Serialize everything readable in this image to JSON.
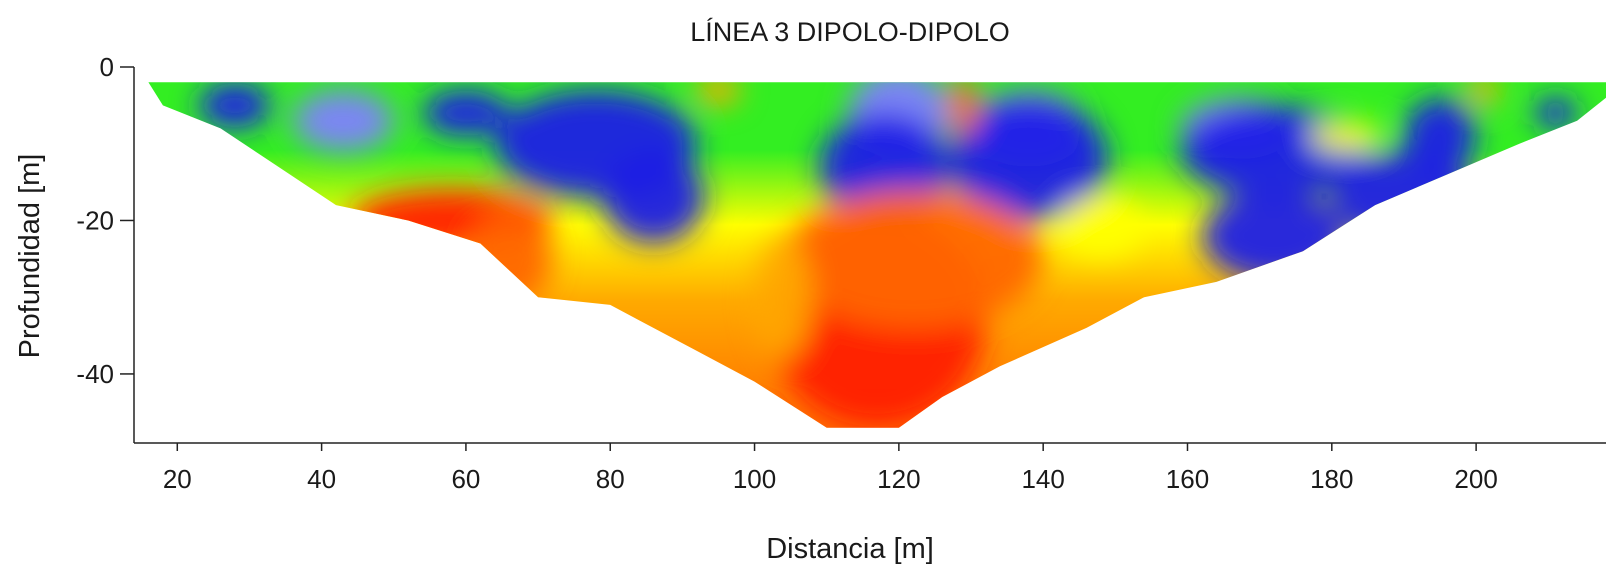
{
  "chart_data": {
    "type": "heatmap",
    "title": "LÍNEA 3 DIPOLO-DIPOLO",
    "xlabel": "Distancia [m]",
    "ylabel": "Profundidad [m]",
    "xlim": [
      14,
      218
    ],
    "ylim": [
      -49,
      0
    ],
    "x_ticks": [
      20,
      40,
      60,
      80,
      100,
      120,
      140,
      160,
      180,
      200
    ],
    "y_ticks": [
      0,
      -20,
      -40
    ],
    "colormap": [
      "#7f7fff",
      "#1e1ee6",
      "#22cc22",
      "#33ee22",
      "#ffff00",
      "#ffaa00",
      "#ff6600",
      "#ff1a00"
    ],
    "pseudosection_outline": [
      [
        16,
        -2
      ],
      [
        18,
        -5
      ],
      [
        26,
        -8
      ],
      [
        34,
        -13
      ],
      [
        42,
        -18
      ],
      [
        52,
        -20
      ],
      [
        62,
        -23
      ],
      [
        70,
        -30
      ],
      [
        80,
        -31
      ],
      [
        92,
        -37
      ],
      [
        100,
        -41
      ],
      [
        110,
        -47
      ],
      [
        120,
        -47
      ],
      [
        126,
        -43
      ],
      [
        134,
        -39
      ],
      [
        146,
        -34
      ],
      [
        154,
        -30
      ],
      [
        164,
        -28
      ],
      [
        176,
        -24
      ],
      [
        186,
        -18
      ],
      [
        196,
        -14
      ],
      [
        206,
        -10
      ],
      [
        214,
        -7
      ],
      [
        218,
        -4
      ],
      [
        218,
        -2
      ]
    ],
    "anomalies": [
      {
        "x": 43,
        "y": -7,
        "rx": 7,
        "ry": 4,
        "level": 0
      },
      {
        "x": 28,
        "y": -5,
        "rx": 5,
        "ry": 3,
        "level": 1
      },
      {
        "x": 60,
        "y": -6,
        "rx": 6,
        "ry": 3,
        "level": 1
      },
      {
        "x": 78,
        "y": -10,
        "rx": 14,
        "ry": 7,
        "level": 1
      },
      {
        "x": 86,
        "y": -17,
        "rx": 7,
        "ry": 6,
        "level": 1
      },
      {
        "x": 120,
        "y": -6,
        "rx": 7,
        "ry": 6,
        "level": 0
      },
      {
        "x": 118,
        "y": -13,
        "rx": 9,
        "ry": 7,
        "level": 1
      },
      {
        "x": 138,
        "y": -8,
        "rx": 8,
        "ry": 5,
        "level": 0
      },
      {
        "x": 138,
        "y": -12,
        "rx": 11,
        "ry": 8,
        "level": 1
      },
      {
        "x": 167,
        "y": -8,
        "rx": 8,
        "ry": 4,
        "level": 0
      },
      {
        "x": 172,
        "y": -11,
        "rx": 13,
        "ry": 6,
        "level": 1
      },
      {
        "x": 195,
        "y": -9,
        "rx": 5,
        "ry": 5,
        "level": 1
      },
      {
        "x": 190,
        "y": -17,
        "rx": 10,
        "ry": 6,
        "level": 1
      },
      {
        "x": 172,
        "y": -22,
        "rx": 10,
        "ry": 6,
        "level": 1
      },
      {
        "x": 211,
        "y": -6,
        "rx": 3,
        "ry": 2,
        "level": 1
      },
      {
        "x": 58,
        "y": -20,
        "rx": 14,
        "ry": 4,
        "level": 7
      },
      {
        "x": 66,
        "y": -25,
        "rx": 6,
        "ry": 6,
        "level": 6
      },
      {
        "x": 117,
        "y": -33,
        "rx": 15,
        "ry": 14,
        "level": 7
      },
      {
        "x": 122,
        "y": -25,
        "rx": 18,
        "ry": 9,
        "level": 6
      },
      {
        "x": 104,
        "y": -30,
        "rx": 4,
        "ry": 8,
        "level": 5
      },
      {
        "x": 129,
        "y": -5,
        "rx": 2,
        "ry": 4,
        "level": 6
      },
      {
        "x": 95,
        "y": -3,
        "rx": 3,
        "ry": 2,
        "level": 5
      },
      {
        "x": 201,
        "y": -3,
        "rx": 2,
        "ry": 2,
        "level": 5
      },
      {
        "x": 182,
        "y": -9,
        "rx": 5,
        "ry": 2,
        "level": 4
      },
      {
        "x": 148,
        "y": -21,
        "rx": 6,
        "ry": 4,
        "level": 4
      }
    ]
  }
}
